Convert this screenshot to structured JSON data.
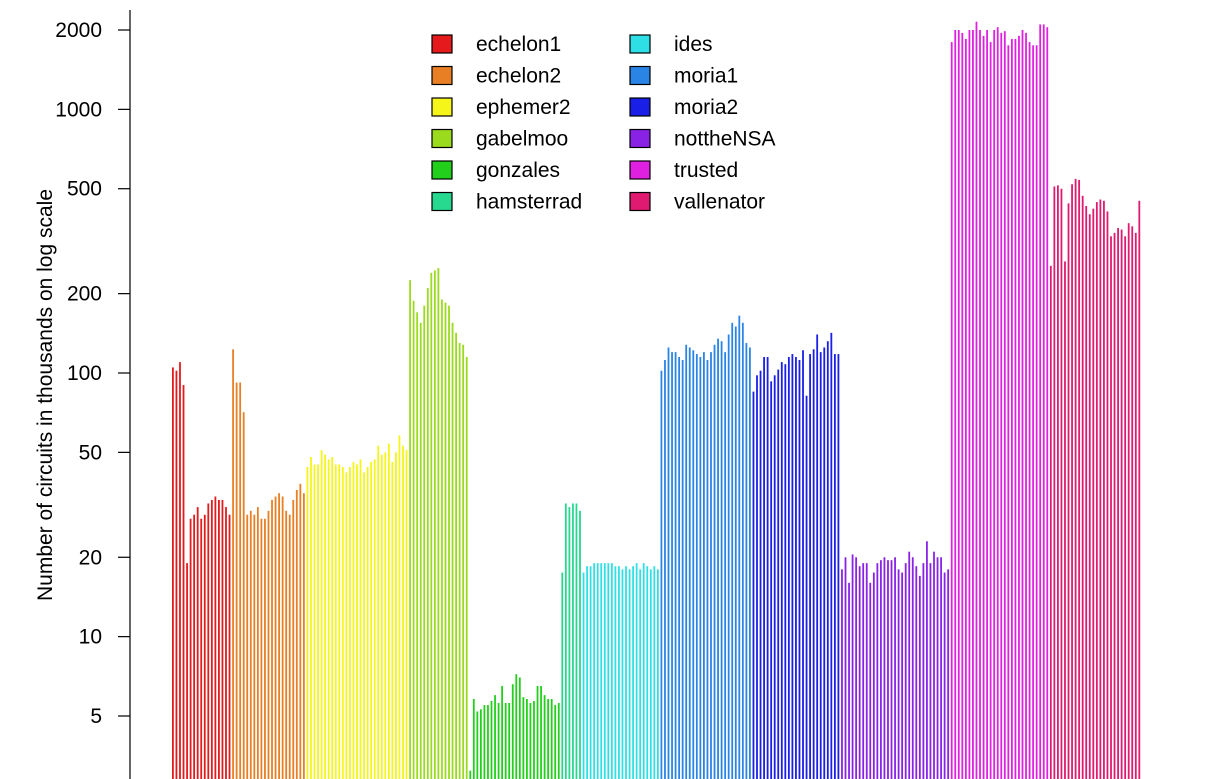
{
  "chart_data": {
    "type": "bar",
    "title": "",
    "xlabel": "",
    "ylabel": "Number of circuits in thousands on log scale",
    "y_scale": "log",
    "ylim": [
      3,
      2300
    ],
    "y_ticks": [
      5,
      10,
      20,
      50,
      100,
      200,
      500,
      1000,
      2000
    ],
    "y_tick_labels": [
      "5",
      "10",
      "20",
      "50",
      "100",
      "200",
      "500",
      "1000",
      "2000"
    ],
    "grid": false,
    "legend_position": "top-center",
    "series": [
      {
        "name": "echelon1",
        "color": "#e41a1c",
        "values": [
          105,
          102,
          110,
          90,
          19,
          28,
          29,
          31,
          28,
          29,
          32,
          33,
          34,
          33,
          33,
          31,
          29
        ]
      },
      {
        "name": "echelon2",
        "color": "#e87f24",
        "values": [
          123,
          92,
          92,
          71,
          29,
          30,
          29,
          31,
          28,
          28,
          30,
          33,
          34,
          35,
          34,
          30,
          29,
          33,
          36,
          38,
          35
        ]
      },
      {
        "name": "ephemer2",
        "color": "#f5f51a",
        "values": [
          44,
          48,
          45,
          45,
          51,
          49,
          47,
          48,
          45,
          45,
          44,
          42,
          44,
          46,
          45,
          47,
          42,
          44,
          46,
          47,
          53,
          49,
          50,
          54,
          46,
          50,
          58,
          53,
          51
        ]
      },
      {
        "name": "gabelmoo",
        "color": "#9adb1e",
        "values": [
          225,
          188,
          170,
          155,
          180,
          210,
          240,
          245,
          250,
          190,
          185,
          180,
          155,
          142,
          130,
          128,
          115
        ]
      },
      {
        "name": "gonzales",
        "color": "#22d01c",
        "values": [
          3.1,
          5.8,
          5.2,
          5.3,
          5.5,
          5.5,
          5.7,
          6.0,
          5.6,
          6.5,
          5.6,
          5.6,
          6.6,
          7.2,
          7.0,
          5.9,
          5.8,
          5.6,
          5.7,
          6.5,
          6.5,
          6.0,
          5.8,
          5.8,
          5.5,
          5.6
        ]
      },
      {
        "name": "hamsterrad",
        "color": "#26d98f",
        "values": [
          17.5,
          32,
          31,
          32,
          32,
          30
        ]
      },
      {
        "name": "ides",
        "color": "#2ee0e6",
        "values": [
          17.5,
          18.5,
          18.5,
          19,
          19,
          19,
          19,
          19,
          19,
          18.5,
          18.5,
          18,
          18.5,
          18,
          18.5,
          19,
          18,
          19,
          18.5,
          18,
          18.5,
          18
        ]
      },
      {
        "name": "moria1",
        "color": "#2a84e6",
        "values": [
          102,
          112,
          125,
          120,
          120,
          115,
          112,
          128,
          125,
          122,
          118,
          115,
          120,
          112,
          120,
          128,
          135,
          132,
          120,
          140,
          155,
          150,
          165,
          155,
          130,
          125
        ]
      },
      {
        "name": "moria2",
        "color": "#1a1fe8",
        "values": [
          85,
          98,
          102,
          115,
          115,
          93,
          98,
          103,
          110,
          108,
          115,
          118,
          115,
          112,
          122,
          82,
          118,
          123,
          140,
          120,
          125,
          132,
          142,
          118,
          118
        ]
      },
      {
        "name": "nottheNSA",
        "color": "#8a22e6",
        "values": [
          18,
          20,
          16,
          20.5,
          20,
          18.5,
          19,
          19,
          16,
          17.5,
          19,
          19.5,
          20,
          19.5,
          19.5,
          20,
          18,
          17.5,
          19,
          21,
          20,
          18.5,
          17,
          19,
          23,
          19,
          21,
          20,
          20,
          17.5,
          18
        ]
      },
      {
        "name": "trusted",
        "color": "#e020e0",
        "values": [
          1800,
          2000,
          2000,
          1950,
          1850,
          2000,
          2000,
          2150,
          2000,
          1900,
          2000,
          1800,
          2000,
          2050,
          1950,
          1980,
          1750,
          1850,
          1850,
          1900,
          2000,
          1950,
          1800,
          1750,
          1750,
          2100,
          2100,
          2050
        ]
      },
      {
        "name": "vallenator",
        "color": "#e01a70",
        "values": [
          255,
          510,
          515,
          500,
          265,
          440,
          520,
          545,
          540,
          470,
          430,
          400,
          420,
          445,
          455,
          450,
          410,
          330,
          340,
          355,
          350,
          330,
          370,
          360,
          340,
          450
        ]
      }
    ]
  }
}
